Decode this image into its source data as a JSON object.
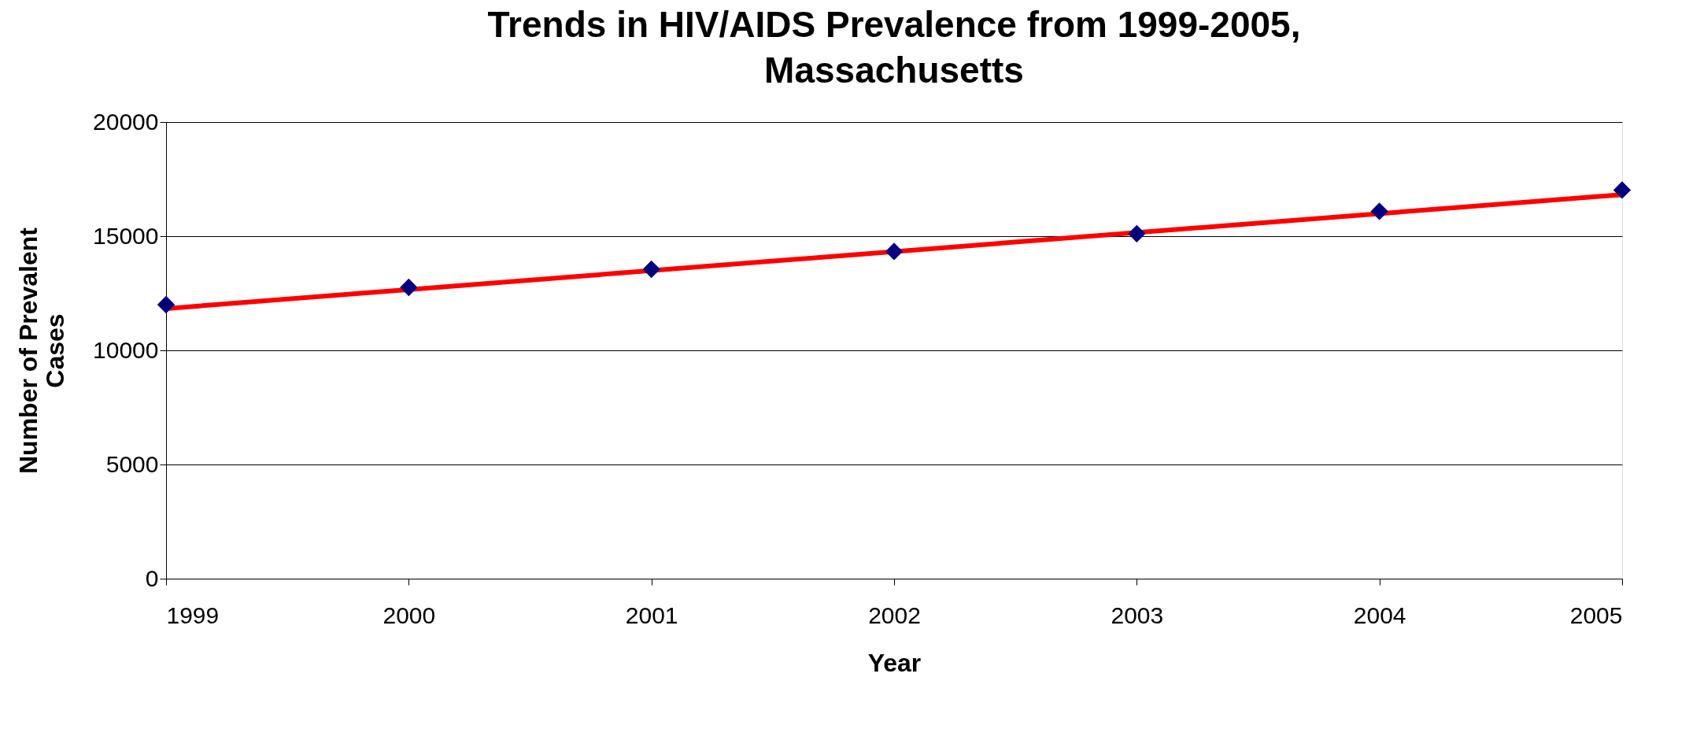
{
  "chart_data": {
    "type": "scatter",
    "title": "Trends in HIV/AIDS Prevalence from 1999-2005,\nMassachusetts",
    "xlabel": "Year",
    "ylabel": "Number of Prevalent\nCases",
    "x": [
      1999,
      2000,
      2001,
      2002,
      2003,
      2004,
      2005
    ],
    "series": [
      {
        "color": "#000080",
        "marker": "diamond",
        "values": [
          12000,
          12760,
          13550,
          14330,
          15110,
          16090,
          17020
        ]
      },
      {
        "type": "line",
        "color": "#ff0000",
        "x": [
          1999,
          2005
        ],
        "values": [
          11830,
          16820
        ]
      }
    ],
    "xlim": [
      1999,
      2005
    ],
    "xticks": [
      1999,
      2000,
      2001,
      2002,
      2003,
      2004,
      2005
    ],
    "ylim": [
      0,
      20000
    ],
    "yticks": [
      0,
      5000,
      10000,
      15000,
      20000
    ],
    "grid": "y"
  }
}
